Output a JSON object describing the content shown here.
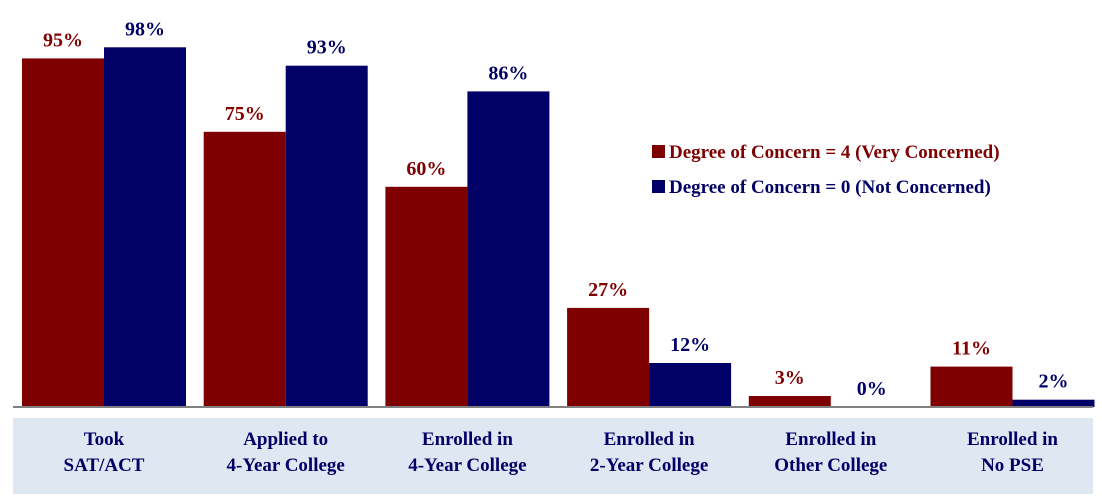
{
  "chart_data": {
    "type": "bar",
    "title": "",
    "xlabel": "",
    "ylabel": "",
    "ylim": [
      0,
      100
    ],
    "grid": false,
    "legend_position": "right",
    "value_suffix": "%",
    "categories": [
      [
        "Took",
        "SAT/ACT"
      ],
      [
        "Applied to",
        "4-Year College"
      ],
      [
        "Enrolled in",
        "4-Year College"
      ],
      [
        "Enrolled in",
        "2-Year College"
      ],
      [
        "Enrolled in",
        "Other College"
      ],
      [
        "Enrolled in",
        "No PSE"
      ]
    ],
    "series": [
      {
        "name": "Degree of Concern = 4 (Very Concerned)",
        "color": "#7f0000",
        "values": [
          95,
          75,
          60,
          27,
          3,
          11
        ]
      },
      {
        "name": "Degree of Concern = 0 (Not Concerned)",
        "color": "#000066",
        "values": [
          98,
          93,
          86,
          12,
          0,
          2
        ]
      }
    ],
    "category_band_color": "#dfe7f2",
    "axis_color": "#808080"
  }
}
